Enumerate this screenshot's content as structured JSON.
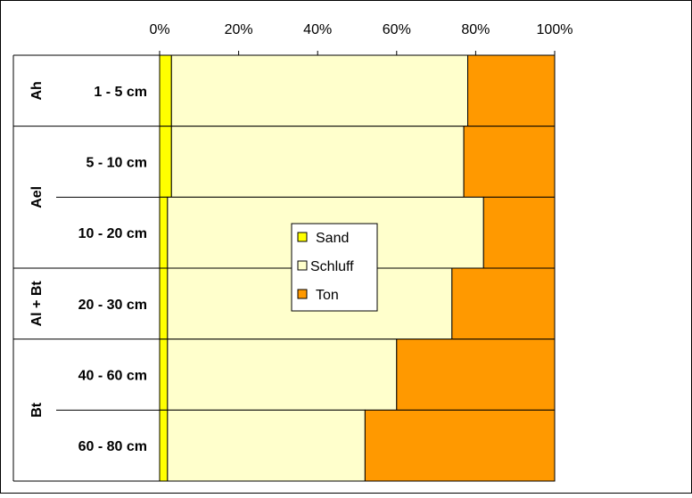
{
  "chart_data": {
    "type": "bar",
    "orientation": "horizontal",
    "stacked": "percent",
    "x_ticks": [
      "0%",
      "20%",
      "40%",
      "60%",
      "80%",
      "100%"
    ],
    "xlim": [
      0,
      100
    ],
    "grid": false,
    "categories": [
      "1 - 5 cm",
      "5 - 10 cm",
      "10 - 20 cm",
      "20 - 30 cm",
      "40 - 60 cm",
      "60 - 80 cm"
    ],
    "groups": [
      {
        "label": "Ah",
        "categories": [
          "1 - 5 cm"
        ]
      },
      {
        "label": "Ael",
        "categories": [
          "5 - 10 cm",
          "10 - 20 cm"
        ]
      },
      {
        "label": "Al + Bt",
        "categories": [
          "20 - 30 cm"
        ]
      },
      {
        "label": "Bt",
        "categories": [
          "40 - 60 cm",
          "60 - 80 cm"
        ]
      }
    ],
    "series": [
      {
        "name": "Sand",
        "color": "#FFFF00",
        "values": [
          3,
          3,
          2,
          2,
          2,
          2
        ]
      },
      {
        "name": "Schluff",
        "color": "#FFFFCC",
        "values": [
          75,
          74,
          80,
          72,
          58,
          50
        ]
      },
      {
        "name": "Ton",
        "color": "#FF9900",
        "values": [
          22,
          23,
          18,
          26,
          40,
          48
        ]
      }
    ],
    "legend_position": "center"
  }
}
